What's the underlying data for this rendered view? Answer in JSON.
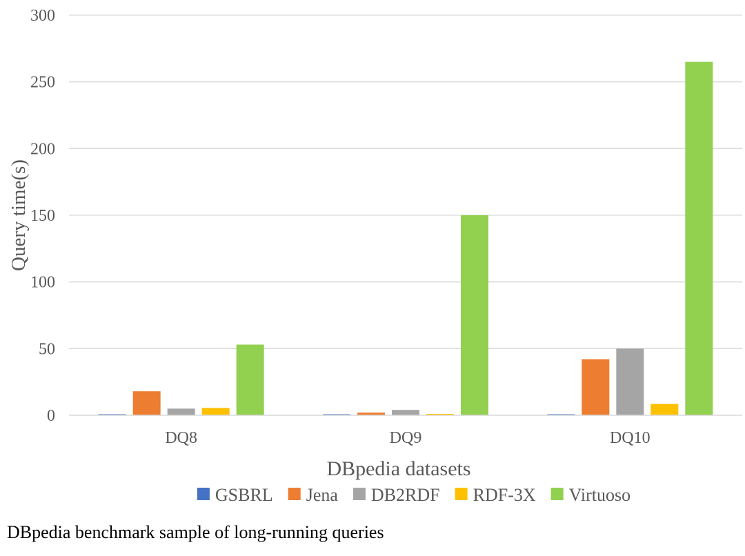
{
  "chart_data": {
    "type": "bar",
    "title": "",
    "xlabel": "DBpedia datasets",
    "ylabel": "Query time(s)",
    "ylim": [
      0,
      300
    ],
    "yticks": [
      0,
      50,
      100,
      150,
      200,
      250,
      300
    ],
    "grid": true,
    "legend_position": "bottom",
    "categories": [
      "DQ8",
      "DQ9",
      "DQ10"
    ],
    "series": [
      {
        "name": "GSBRL",
        "color": "#4472C4",
        "values": [
          0.5,
          0.5,
          0.5
        ]
      },
      {
        "name": "Jena",
        "color": "#ED7D31",
        "values": [
          18,
          2,
          42
        ]
      },
      {
        "name": "DB2RDF",
        "color": "#A5A5A5",
        "values": [
          5,
          4,
          50
        ]
      },
      {
        "name": "RDF-3X",
        "color": "#FFC000",
        "values": [
          5.5,
          1,
          8.5
        ]
      },
      {
        "name": "Virtuoso",
        "color": "#92D050",
        "values": [
          53,
          150,
          265
        ]
      }
    ]
  },
  "caption": "DBpedia benchmark sample of long-running queries"
}
